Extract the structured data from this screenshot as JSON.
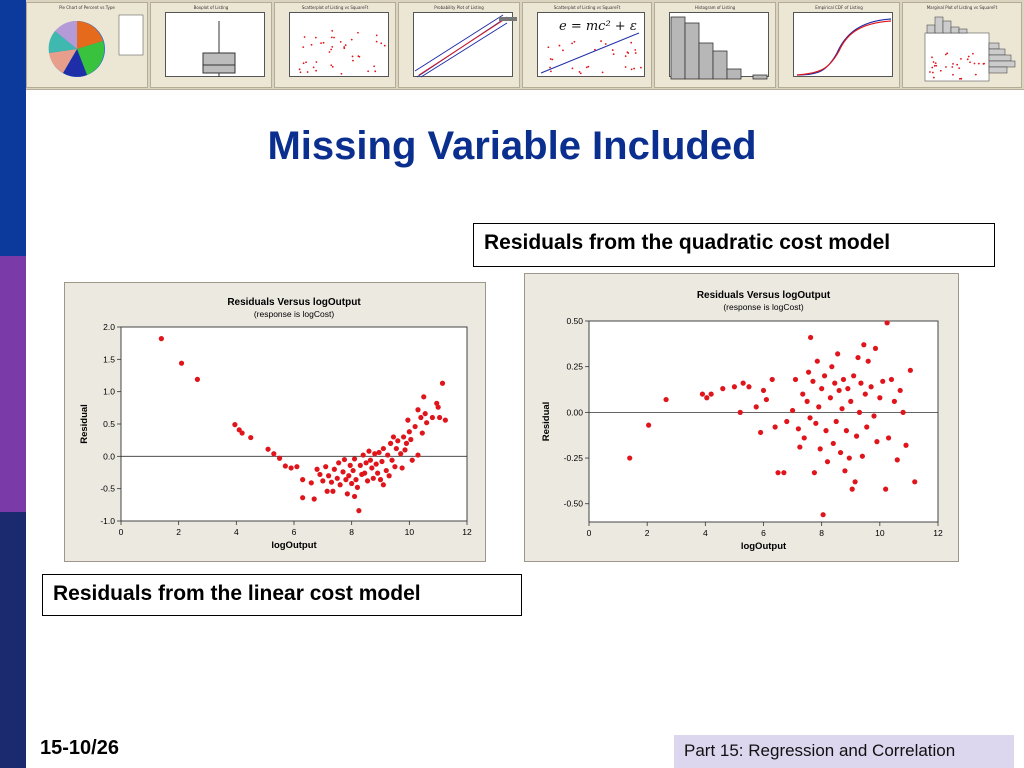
{
  "slide": {
    "title": "Missing Variable Included",
    "page_number": "15-10/26",
    "footer": "Part 15: Regression and Correlation",
    "caption_quadratic": "Residuals from the quadratic cost model",
    "caption_linear": "Residuals from the linear cost model"
  },
  "colors": {
    "stripe_top": "#0b3a9c",
    "stripe_mid": "#7a3aa8",
    "stripe_bottom": "#1b2a6e",
    "title": "#0b2f8f",
    "point": "#e0141b",
    "footer_box": "#dcd6ee"
  },
  "banner": {
    "thumbnails": [
      {
        "title": "Pie Chart of Percent vs Type"
      },
      {
        "title": "Boxplot of Listing"
      },
      {
        "title": "Scatterplot of Listing vs SquareFt"
      },
      {
        "title": "Probability Plot of Listing"
      },
      {
        "title": "Scatterplot of Listing vs SquareFt",
        "formula": "e = mc² + ε"
      },
      {
        "title": "Histogram of Listing"
      },
      {
        "title": "Empirical CDF of Listing"
      },
      {
        "title": "Marginal Plot of Listing vs SquareFt"
      }
    ]
  },
  "chart_data": [
    {
      "type": "scatter",
      "title": "Residuals Versus logOutput",
      "subtitle": "(response is logCost)",
      "xlabel": "logOutput",
      "ylabel": "Residual",
      "xlim": [
        0,
        12
      ],
      "ylim": [
        -1.0,
        2.0
      ],
      "xticks": [
        "0",
        "2",
        "4",
        "6",
        "8",
        "10",
        "12"
      ],
      "yticks": [
        "-1.0",
        "-0.5",
        "0.0",
        "0.5",
        "1.0",
        "1.5",
        "2.0"
      ],
      "reference_line": 0,
      "points": [
        [
          1.4,
          1.82
        ],
        [
          2.1,
          1.44
        ],
        [
          2.65,
          1.19
        ],
        [
          3.95,
          0.49
        ],
        [
          4.1,
          0.41
        ],
        [
          4.2,
          0.36
        ],
        [
          4.5,
          0.29
        ],
        [
          5.1,
          0.11
        ],
        [
          5.3,
          0.04
        ],
        [
          5.5,
          -0.03
        ],
        [
          5.7,
          -0.15
        ],
        [
          5.9,
          -0.18
        ],
        [
          6.1,
          -0.16
        ],
        [
          6.3,
          -0.36
        ],
        [
          6.3,
          -0.64
        ],
        [
          6.6,
          -0.41
        ],
        [
          6.7,
          -0.66
        ],
        [
          6.8,
          -0.2
        ],
        [
          6.9,
          -0.28
        ],
        [
          7.0,
          -0.38
        ],
        [
          7.1,
          -0.16
        ],
        [
          7.15,
          -0.54
        ],
        [
          7.2,
          -0.3
        ],
        [
          7.3,
          -0.4
        ],
        [
          7.35,
          -0.54
        ],
        [
          7.4,
          -0.2
        ],
        [
          7.5,
          -0.34
        ],
        [
          7.55,
          -0.1
        ],
        [
          7.6,
          -0.44
        ],
        [
          7.7,
          -0.24
        ],
        [
          7.75,
          -0.05
        ],
        [
          7.8,
          -0.36
        ],
        [
          7.85,
          -0.58
        ],
        [
          7.9,
          -0.3
        ],
        [
          7.95,
          -0.14
        ],
        [
          8.0,
          -0.42
        ],
        [
          8.05,
          -0.22
        ],
        [
          8.1,
          -0.04
        ],
        [
          8.1,
          -0.62
        ],
        [
          8.15,
          -0.36
        ],
        [
          8.2,
          -0.48
        ],
        [
          8.25,
          -0.84
        ],
        [
          8.3,
          -0.14
        ],
        [
          8.35,
          -0.28
        ],
        [
          8.4,
          0.02
        ],
        [
          8.45,
          -0.26
        ],
        [
          8.5,
          -0.1
        ],
        [
          8.55,
          -0.38
        ],
        [
          8.6,
          0.08
        ],
        [
          8.65,
          -0.06
        ],
        [
          8.7,
          -0.18
        ],
        [
          8.75,
          -0.34
        ],
        [
          8.8,
          0.04
        ],
        [
          8.85,
          -0.12
        ],
        [
          8.9,
          -0.26
        ],
        [
          8.95,
          0.06
        ],
        [
          9.0,
          -0.36
        ],
        [
          9.05,
          -0.08
        ],
        [
          9.1,
          -0.44
        ],
        [
          9.1,
          0.12
        ],
        [
          9.2,
          -0.22
        ],
        [
          9.25,
          0.02
        ],
        [
          9.3,
          -0.3
        ],
        [
          9.35,
          0.2
        ],
        [
          9.4,
          -0.06
        ],
        [
          9.45,
          0.3
        ],
        [
          9.5,
          -0.16
        ],
        [
          9.55,
          0.12
        ],
        [
          9.6,
          0.24
        ],
        [
          9.7,
          0.04
        ],
        [
          9.75,
          -0.18
        ],
        [
          9.8,
          0.3
        ],
        [
          9.85,
          0.1
        ],
        [
          9.9,
          0.2
        ],
        [
          9.95,
          0.56
        ],
        [
          10.0,
          0.38
        ],
        [
          10.05,
          0.26
        ],
        [
          10.1,
          -0.06
        ],
        [
          10.2,
          0.46
        ],
        [
          10.3,
          0.02
        ],
        [
          10.3,
          0.72
        ],
        [
          10.4,
          0.6
        ],
        [
          10.45,
          0.36
        ],
        [
          10.5,
          0.92
        ],
        [
          10.55,
          0.66
        ],
        [
          10.6,
          0.52
        ],
        [
          10.8,
          0.6
        ],
        [
          10.95,
          0.82
        ],
        [
          11.0,
          0.76
        ],
        [
          11.05,
          0.6
        ],
        [
          11.15,
          1.13
        ],
        [
          11.25,
          0.56
        ]
      ]
    },
    {
      "type": "scatter",
      "title": "Residuals Versus logOutput",
      "subtitle": "(response is logCost)",
      "xlabel": "logOutput",
      "ylabel": "Residual",
      "xlim": [
        0,
        12
      ],
      "ylim": [
        -0.6,
        0.5
      ],
      "xticks": [
        "0",
        "2",
        "4",
        "6",
        "8",
        "10",
        "12"
      ],
      "yticks": [
        "-0.50",
        "-0.25",
        "0.00",
        "0.25",
        "0.50"
      ],
      "reference_line": 0,
      "points": [
        [
          1.4,
          -0.25
        ],
        [
          2.05,
          -0.07
        ],
        [
          2.65,
          0.07
        ],
        [
          3.9,
          0.1
        ],
        [
          4.05,
          0.08
        ],
        [
          4.2,
          0.1
        ],
        [
          4.6,
          0.13
        ],
        [
          5.0,
          0.14
        ],
        [
          5.2,
          0.0
        ],
        [
          5.3,
          0.16
        ],
        [
          5.5,
          0.14
        ],
        [
          5.75,
          0.03
        ],
        [
          5.9,
          -0.11
        ],
        [
          6.0,
          0.12
        ],
        [
          6.1,
          0.07
        ],
        [
          6.3,
          0.18
        ],
        [
          6.4,
          -0.08
        ],
        [
          6.5,
          -0.33
        ],
        [
          6.7,
          -0.33
        ],
        [
          6.8,
          -0.05
        ],
        [
          7.0,
          0.01
        ],
        [
          7.1,
          0.18
        ],
        [
          7.2,
          -0.09
        ],
        [
          7.25,
          -0.19
        ],
        [
          7.35,
          0.1
        ],
        [
          7.4,
          -0.14
        ],
        [
          7.5,
          0.06
        ],
        [
          7.55,
          0.22
        ],
        [
          7.6,
          -0.03
        ],
        [
          7.62,
          0.41
        ],
        [
          7.7,
          0.17
        ],
        [
          7.75,
          -0.33
        ],
        [
          7.8,
          -0.06
        ],
        [
          7.85,
          0.28
        ],
        [
          7.9,
          0.03
        ],
        [
          7.95,
          -0.2
        ],
        [
          8.0,
          0.13
        ],
        [
          8.05,
          -0.56
        ],
        [
          8.1,
          0.2
        ],
        [
          8.15,
          -0.1
        ],
        [
          8.2,
          -0.27
        ],
        [
          8.3,
          0.08
        ],
        [
          8.35,
          0.25
        ],
        [
          8.4,
          -0.17
        ],
        [
          8.45,
          0.16
        ],
        [
          8.5,
          -0.05
        ],
        [
          8.55,
          0.32
        ],
        [
          8.6,
          0.12
        ],
        [
          8.65,
          -0.22
        ],
        [
          8.7,
          0.02
        ],
        [
          8.75,
          0.18
        ],
        [
          8.8,
          -0.32
        ],
        [
          8.85,
          -0.1
        ],
        [
          8.9,
          0.13
        ],
        [
          8.95,
          -0.25
        ],
        [
          9.0,
          0.06
        ],
        [
          9.05,
          -0.42
        ],
        [
          9.1,
          0.2
        ],
        [
          9.15,
          -0.38
        ],
        [
          9.2,
          -0.13
        ],
        [
          9.25,
          0.3
        ],
        [
          9.3,
          0.0
        ],
        [
          9.35,
          0.16
        ],
        [
          9.4,
          -0.24
        ],
        [
          9.45,
          0.37
        ],
        [
          9.5,
          0.1
        ],
        [
          9.55,
          -0.08
        ],
        [
          9.6,
          0.28
        ],
        [
          9.7,
          0.14
        ],
        [
          9.8,
          -0.02
        ],
        [
          9.85,
          0.35
        ],
        [
          9.9,
          -0.16
        ],
        [
          10.0,
          0.08
        ],
        [
          10.1,
          0.17
        ],
        [
          10.2,
          -0.42
        ],
        [
          10.25,
          0.49
        ],
        [
          10.3,
          -0.14
        ],
        [
          10.4,
          0.18
        ],
        [
          10.5,
          0.06
        ],
        [
          10.6,
          -0.26
        ],
        [
          10.7,
          0.12
        ],
        [
          10.8,
          0.0
        ],
        [
          10.9,
          -0.18
        ],
        [
          11.05,
          0.23
        ],
        [
          11.2,
          -0.38
        ]
      ]
    }
  ]
}
